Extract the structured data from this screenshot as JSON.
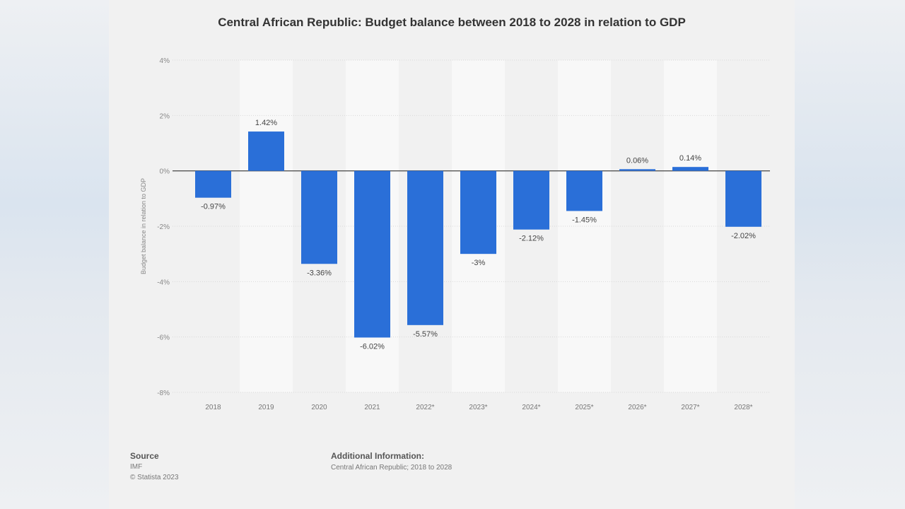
{
  "colors": {
    "bar": "#2a6fd8",
    "grid": "#d9d9d9",
    "stripe": "#f8f8f8",
    "card": "#f1f1f1"
  },
  "chart_data": {
    "type": "bar",
    "title": "Central African Republic: Budget balance between 2018 to 2028 in relation to GDP",
    "ylabel": "Budget balance in relation to GDP",
    "xlabel": "",
    "categories": [
      "2018",
      "2019",
      "2020",
      "2021",
      "2022*",
      "2023*",
      "2024*",
      "2025*",
      "2026*",
      "2027*",
      "2028*"
    ],
    "values": [
      -0.97,
      1.42,
      -3.36,
      -6.02,
      -5.57,
      -3,
      -2.12,
      -1.45,
      0.06,
      0.14,
      -2.02
    ],
    "data_labels": [
      "-0.97%",
      "1.42%",
      "-3.36%",
      "-6.02%",
      "-5.57%",
      "-3%",
      "-2.12%",
      "-1.45%",
      "0.06%",
      "0.14%",
      "-2.02%"
    ],
    "ylim": [
      -8,
      4
    ],
    "yticks": [
      4,
      2,
      0,
      -2,
      -4,
      -6,
      -8
    ],
    "ytick_labels": [
      "4%",
      "2%",
      "0%",
      "-2%",
      "-4%",
      "-6%",
      "-8%"
    ],
    "grid": true,
    "legend": "none"
  },
  "footer": {
    "source_heading": "Source",
    "source_lines": [
      "IMF",
      "© Statista 2023"
    ],
    "additional_heading": "Additional Information:",
    "additional_text": "Central African Republic; 2018 to 2028"
  }
}
